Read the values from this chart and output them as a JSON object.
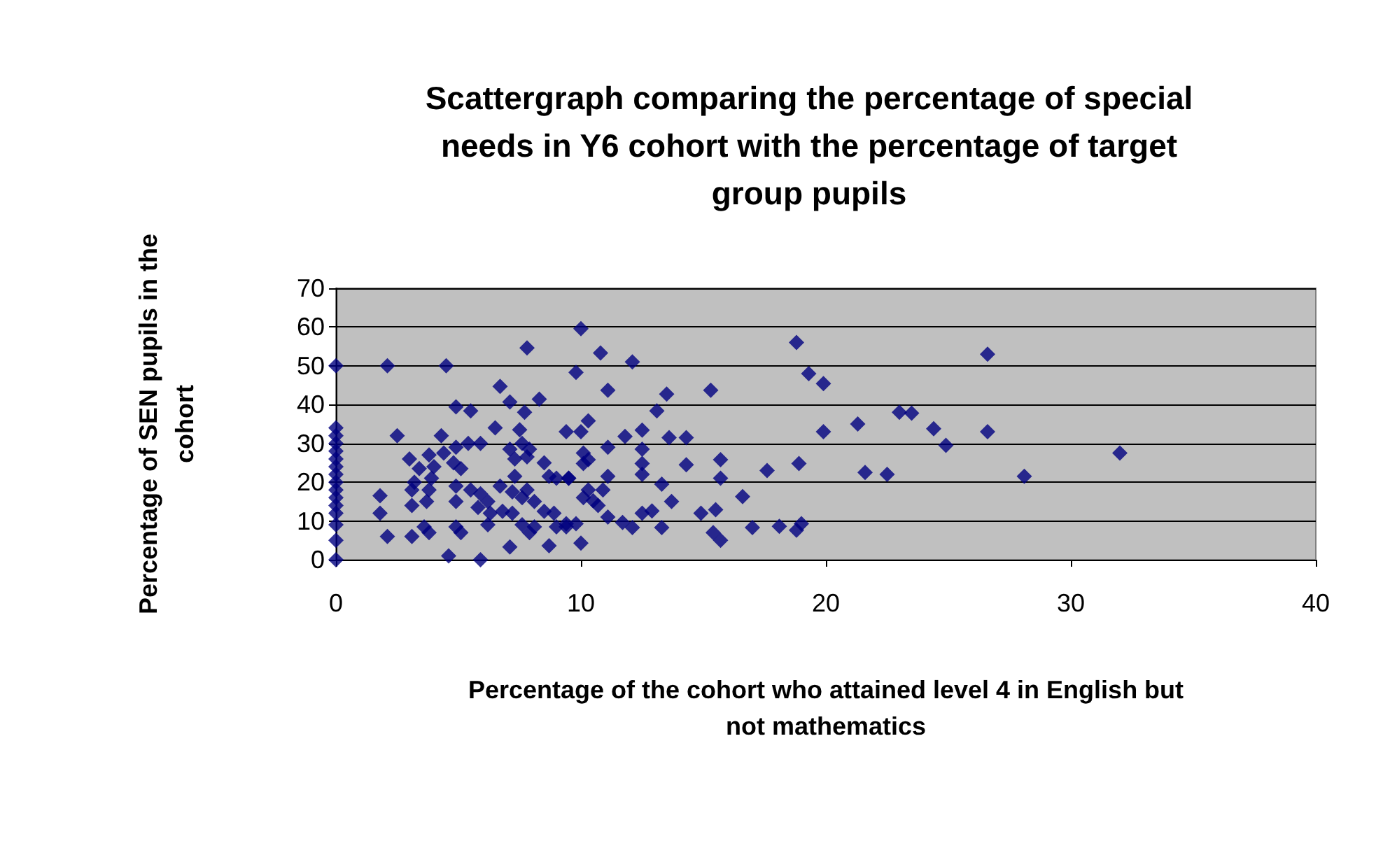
{
  "chart_data": {
    "type": "scatter",
    "title": "Scattergraph comparing the percentage of special needs in Y6 cohort with the percentage of target group pupils",
    "xlabel": "Percentage of the cohort who attained level 4 in English but not mathematics",
    "ylabel": "Percentage of SEN pupils in the cohort",
    "x": [
      0,
      0,
      0,
      0,
      0,
      0,
      0,
      0,
      0,
      0,
      0,
      0,
      0,
      0,
      0,
      0,
      2.1,
      1.8,
      1.8,
      2.1,
      4.5,
      7.8,
      6.7,
      7.1,
      8.3,
      4.9,
      5.5,
      7.7,
      7.5,
      6.5,
      2.5,
      4.3,
      4.9,
      5.4,
      5.9,
      3.0,
      3.8,
      4.4,
      3.4,
      4.0,
      4.8,
      5.1,
      7.1,
      7.6,
      7.9,
      7.3,
      7.8,
      8.5,
      8.7,
      9.0,
      9.5,
      7.3,
      3.2,
      3.9,
      4.9,
      5.5,
      3.1,
      3.8,
      6.7,
      7.2,
      7.8,
      7.6,
      5.9,
      6.2,
      3.1,
      3.7,
      4.9,
      5.8,
      6.3,
      6.8,
      7.2,
      8.1,
      8.5,
      8.9,
      3.6,
      3.8,
      3.1,
      4.9,
      5.1,
      6.2,
      7.6,
      7.9,
      8.1,
      9.0,
      9.4,
      7.1,
      8.7,
      4.6,
      5.9,
      10.0,
      10.8,
      9.8,
      12.1,
      11.1,
      13.5,
      15.3,
      13.1,
      18.8,
      19.3,
      19.9,
      10.3,
      9.4,
      10.0,
      11.8,
      12.5,
      13.6,
      14.3,
      19.9,
      11.1,
      12.5,
      10.1,
      10.3,
      10.1,
      12.5,
      12.5,
      14.3,
      15.7,
      18.9,
      17.6,
      15.7,
      9.5,
      11.1,
      13.3,
      10.3,
      10.9,
      10.1,
      10.5,
      13.7,
      16.6,
      10.7,
      11.1,
      11.7,
      12.1,
      12.5,
      12.9,
      13.3,
      14.9,
      15.5,
      15.4,
      15.7,
      17.0,
      18.1,
      18.8,
      19.0,
      9.4,
      9.8,
      10.0,
      21.3,
      21.6,
      22.5,
      23.0,
      23.5,
      24.4,
      24.9,
      26.6,
      26.6,
      28.1,
      32.0
    ],
    "values": [
      0,
      5,
      9,
      12,
      14,
      16,
      18,
      20,
      22,
      24,
      26,
      28,
      30,
      32,
      34,
      50,
      50,
      16.5,
      12,
      6,
      50,
      54.6,
      44.7,
      40.7,
      41.4,
      39.4,
      38.4,
      38,
      33.5,
      34,
      32,
      32,
      29,
      30,
      30,
      26,
      27,
      27.5,
      23.5,
      24,
      25,
      23.5,
      28.5,
      30,
      28.5,
      26,
      26.5,
      25,
      21.5,
      21,
      21,
      21.5,
      20,
      21,
      19,
      18,
      18,
      18,
      19,
      17.5,
      18,
      16,
      17,
      15,
      14,
      15,
      15,
      13.5,
      12,
      12.5,
      12,
      15,
      12.5,
      12,
      8.5,
      7,
      6,
      8.5,
      7,
      9,
      9,
      7,
      8.5,
      8.5,
      8.5,
      3.3,
      3.6,
      1,
      0,
      59.6,
      53.3,
      48.3,
      51,
      43.7,
      42.7,
      43.7,
      38.4,
      56,
      48,
      45.4,
      35.8,
      33,
      33,
      31.8,
      33.4,
      31.5,
      31.5,
      33,
      29,
      28.5,
      27.5,
      25.8,
      24.8,
      24.8,
      22,
      24.5,
      25.8,
      24.8,
      23,
      21,
      21,
      21.5,
      19.5,
      18,
      18,
      16,
      15.2,
      15,
      16.3,
      14,
      11,
      9.6,
      8.3,
      12,
      12.6,
      8.3,
      12,
      12.9,
      7,
      5,
      8.3,
      8.6,
      7.6,
      9.3,
      9.3,
      9.3,
      4.3,
      35,
      22.5,
      22,
      38,
      37.8,
      33.8,
      29.5,
      53,
      33,
      21.5,
      27.5
    ],
    "color": "#000080",
    "marker": "diamond",
    "xlim": [
      0,
      40
    ],
    "xticks": [
      0,
      10,
      20,
      30,
      40
    ],
    "ylim": [
      0,
      70
    ],
    "yticks": [
      0,
      10,
      20,
      30,
      40,
      50,
      60,
      70
    ],
    "grid": "y"
  }
}
